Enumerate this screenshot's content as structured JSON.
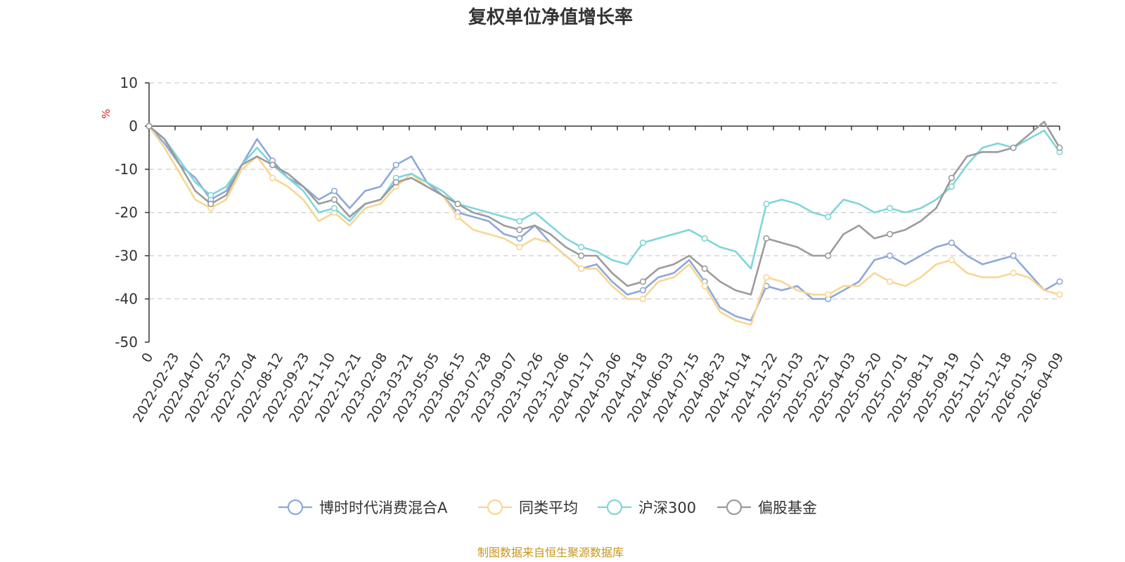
{
  "chart_data": {
    "type": "line",
    "title": "复权单位净值增长率",
    "ylabel": "%",
    "ylim": [
      -50,
      10
    ],
    "yticks": [
      10,
      0,
      -10,
      -20,
      -30,
      -40,
      -50
    ],
    "xlabel": "",
    "x_tick_labels": [
      "0",
      "2022-02-23",
      "2022-04-07",
      "2022-05-23",
      "2022-07-04",
      "2022-08-12",
      "2022-09-23",
      "2022-11-10",
      "2022-12-21",
      "2023-02-08",
      "2023-03-21",
      "2023-05-05",
      "2023-06-15",
      "2023-07-28",
      "2023-09-07",
      "2023-10-26",
      "2023-12-06",
      "2024-01-17",
      "2024-03-06",
      "2024-04-18",
      "2024-06-03",
      "2024-07-15",
      "2024-08-23",
      "2024-10-14",
      "2024-11-22",
      "2025-01-03",
      "2025-02-21",
      "2025-04-03",
      "2025-05-20",
      "2025-07-01",
      "2025-08-11",
      "2025-09-19",
      "2025-11-07",
      "2025-12-18",
      "2026-01-30",
      "2026-04-09"
    ],
    "grid": "horizontal-dashed",
    "legend_position": "bottom",
    "series": [
      {
        "name": "博时时代消费混合A",
        "color": "#8ea8d8",
        "values": [
          0,
          -4,
          -9,
          -12,
          -17,
          -15,
          -9,
          -3,
          -8,
          -12,
          -14,
          -17,
          -15,
          -19,
          -15,
          -14,
          -9,
          -7,
          -13,
          -16,
          -20,
          -21,
          -22,
          -25,
          -26,
          -23,
          -27,
          -30,
          -33,
          -32,
          -36,
          -39,
          -38,
          -35,
          -34,
          -31,
          -36,
          -42,
          -44,
          -45,
          -37,
          -38,
          -37,
          -40,
          -40,
          -38,
          -36,
          -31,
          -30,
          -32,
          -30,
          -28,
          -27,
          -30,
          -32,
          -31,
          -30,
          -34,
          -38,
          -36
        ]
      },
      {
        "name": "同类平均",
        "color": "#f8d693",
        "values": [
          0,
          -5,
          -11,
          -17,
          -19,
          -17,
          -10,
          -7,
          -12,
          -14,
          -17,
          -22,
          -20,
          -23,
          -19,
          -18,
          -14,
          -11,
          -14,
          -16,
          -21,
          -24,
          -25,
          -26,
          -28,
          -26,
          -27,
          -30,
          -33,
          -33,
          -37,
          -40,
          -40,
          -36,
          -35,
          -32,
          -37,
          -43,
          -45,
          -46,
          -35,
          -36,
          -38,
          -39,
          -39,
          -37,
          -37,
          -34,
          -36,
          -37,
          -35,
          -32,
          -31,
          -34,
          -35,
          -35,
          -34,
          -35,
          -38,
          -39
        ]
      },
      {
        "name": "沪深300",
        "color": "#7fd6d8",
        "values": [
          0,
          -3,
          -8,
          -13,
          -16,
          -14,
          -9,
          -5,
          -9,
          -12,
          -15,
          -20,
          -19,
          -22,
          -18,
          -17,
          -12,
          -11,
          -13,
          -15,
          -18,
          -19,
          -20,
          -21,
          -22,
          -20,
          -23,
          -26,
          -28,
          -29,
          -31,
          -32,
          -27,
          -26,
          -25,
          -24,
          -26,
          -28,
          -29,
          -33,
          -18,
          -17,
          -18,
          -20,
          -21,
          -17,
          -18,
          -20,
          -19,
          -20,
          -19,
          -17,
          -14,
          -9,
          -5,
          -4,
          -5,
          -3,
          -1,
          -6
        ]
      },
      {
        "name": "偏股基金",
        "color": "#9b9b9b",
        "values": [
          0,
          -3,
          -9,
          -15,
          -18,
          -16,
          -9,
          -7,
          -9,
          -11,
          -14,
          -18,
          -17,
          -21,
          -18,
          -17,
          -13,
          -12,
          -14,
          -16,
          -18,
          -20,
          -21,
          -23,
          -24,
          -23,
          -25,
          -28,
          -30,
          -30,
          -34,
          -37,
          -36,
          -33,
          -32,
          -30,
          -33,
          -36,
          -38,
          -39,
          -26,
          -27,
          -28,
          -30,
          -30,
          -25,
          -23,
          -26,
          -25,
          -24,
          -22,
          -19,
          -12,
          -7,
          -6,
          -6,
          -5,
          -2,
          1,
          -5
        ]
      }
    ]
  },
  "source_note": "制图数据来自恒生聚源数据库"
}
